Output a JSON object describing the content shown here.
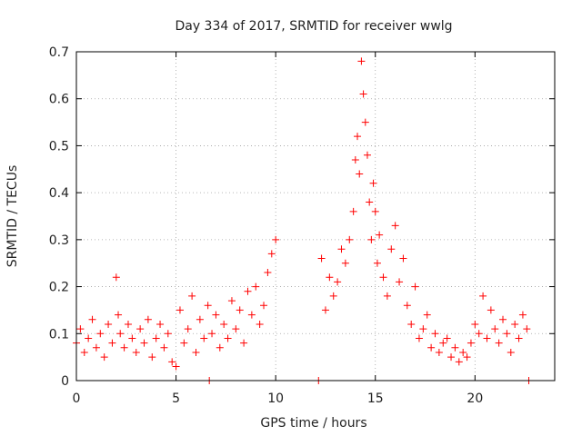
{
  "chart_data": {
    "type": "scatter",
    "title": "Day 334 of 2017, SRMTID for receiver wwlg",
    "xlabel": "GPS time / hours",
    "ylabel": "SRMTID / TECUs",
    "xlim": [
      0,
      24
    ],
    "ylim": [
      0,
      0.7
    ],
    "xticks": [
      0,
      5,
      10,
      15,
      20
    ],
    "xtick_labels": [
      "0",
      "5",
      "10",
      "15",
      "20"
    ],
    "yticks": [
      0,
      0.1,
      0.2,
      0.3,
      0.4,
      0.5,
      0.6,
      0.7
    ],
    "ytick_labels": [
      "0",
      "0.1",
      "0.2",
      "0.3",
      "0.4",
      "0.5",
      "0.6",
      "0.7"
    ],
    "grid": true,
    "marker": "plus",
    "series": [
      {
        "name": "SRMTID",
        "color": "#ff0000",
        "x": [
          0.0,
          0.2,
          0.4,
          0.6,
          0.8,
          1.0,
          1.2,
          1.4,
          1.6,
          1.8,
          2.0,
          2.1,
          2.2,
          2.4,
          2.6,
          2.8,
          3.0,
          3.2,
          3.4,
          3.6,
          3.8,
          4.0,
          4.2,
          4.4,
          4.6,
          4.8,
          5.0,
          5.2,
          5.4,
          5.6,
          5.8,
          6.0,
          6.2,
          6.4,
          6.6,
          6.67,
          6.8,
          7.0,
          7.2,
          7.4,
          7.6,
          7.8,
          8.0,
          8.2,
          8.4,
          8.6,
          8.8,
          9.0,
          9.2,
          9.4,
          9.6,
          9.8,
          10.0,
          12.15,
          12.3,
          12.5,
          12.7,
          12.9,
          13.1,
          13.3,
          13.5,
          13.7,
          13.9,
          14.0,
          14.1,
          14.2,
          14.3,
          14.4,
          14.5,
          14.6,
          14.7,
          14.8,
          14.9,
          15.0,
          15.1,
          15.2,
          15.4,
          15.6,
          15.8,
          16.0,
          16.2,
          16.4,
          16.6,
          16.8,
          17.0,
          17.2,
          17.4,
          17.6,
          17.8,
          18.0,
          18.2,
          18.4,
          18.6,
          18.8,
          19.0,
          19.2,
          19.4,
          19.6,
          19.8,
          20.0,
          20.2,
          20.4,
          20.6,
          20.8,
          21.0,
          21.2,
          21.4,
          21.6,
          21.8,
          22.0,
          22.2,
          22.4,
          22.6,
          22.7
        ],
        "y": [
          0.08,
          0.11,
          0.06,
          0.09,
          0.13,
          0.07,
          0.1,
          0.05,
          0.12,
          0.08,
          0.22,
          0.14,
          0.1,
          0.07,
          0.12,
          0.09,
          0.06,
          0.11,
          0.08,
          0.13,
          0.05,
          0.09,
          0.12,
          0.07,
          0.1,
          0.04,
          0.03,
          0.15,
          0.08,
          0.11,
          0.18,
          0.06,
          0.13,
          0.09,
          0.16,
          0.0,
          0.1,
          0.14,
          0.07,
          0.12,
          0.09,
          0.17,
          0.11,
          0.15,
          0.08,
          0.19,
          0.14,
          0.2,
          0.12,
          0.16,
          0.23,
          0.27,
          0.3,
          0.0,
          0.26,
          0.15,
          0.22,
          0.18,
          0.21,
          0.28,
          0.25,
          0.3,
          0.36,
          0.47,
          0.52,
          0.44,
          0.68,
          0.61,
          0.55,
          0.48,
          0.38,
          0.3,
          0.42,
          0.36,
          0.25,
          0.31,
          0.22,
          0.18,
          0.28,
          0.33,
          0.21,
          0.26,
          0.16,
          0.12,
          0.2,
          0.09,
          0.11,
          0.14,
          0.07,
          0.1,
          0.06,
          0.08,
          0.09,
          0.05,
          0.07,
          0.04,
          0.06,
          0.05,
          0.08,
          0.12,
          0.1,
          0.18,
          0.09,
          0.15,
          0.11,
          0.08,
          0.13,
          0.1,
          0.06,
          0.12,
          0.09,
          0.14,
          0.11,
          0.0
        ]
      }
    ]
  }
}
